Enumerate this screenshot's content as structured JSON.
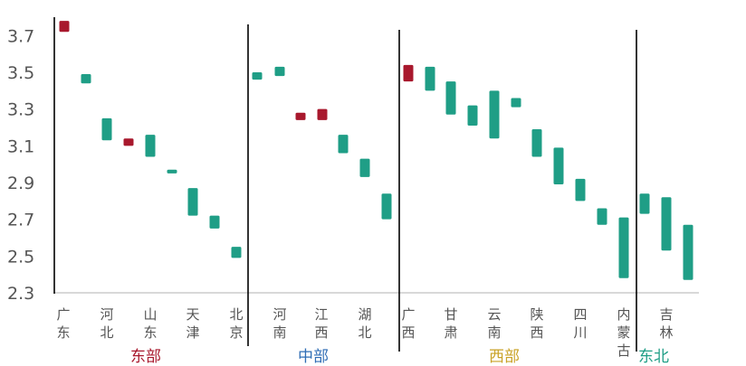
{
  "chart_data": {
    "type": "range-bar",
    "title": "",
    "xlabel": "",
    "ylabel": "",
    "ylim": [
      2.3,
      3.8
    ],
    "yticks": [
      "2.3",
      "2.5",
      "2.7",
      "2.9",
      "3.1",
      "3.3",
      "3.5",
      "3.7"
    ],
    "grid": false,
    "colors": {
      "up": "#1f9e86",
      "down": "#a8182d",
      "axis": "#cccccc",
      "divider": "#000000"
    },
    "categories": [
      "广东",
      "河北",
      "山东",
      "天津",
      "北京",
      "河南",
      "江西",
      "湖北",
      "广西",
      "甘肃",
      "云南",
      "陕西",
      "四川",
      "内蒙古",
      "吉林"
    ],
    "category_chars": [
      [
        "广",
        "东"
      ],
      [
        "河",
        "北"
      ],
      [
        "山",
        "东"
      ],
      [
        "天",
        "津"
      ],
      [
        "北",
        "京"
      ],
      [
        "河",
        "南"
      ],
      [
        "江",
        "西"
      ],
      [
        "湖",
        "北"
      ],
      [
        "广",
        "西"
      ],
      [
        "甘",
        "肃"
      ],
      [
        "云",
        "南"
      ],
      [
        "陕",
        "西"
      ],
      [
        "四",
        "川"
      ],
      [
        "内",
        "蒙",
        "古"
      ],
      [
        "吉",
        "林"
      ]
    ],
    "bars": [
      {
        "low": 3.72,
        "high": 3.78,
        "color": "down"
      },
      {
        "low": 3.44,
        "high": 3.49,
        "color": "up"
      },
      {
        "low": 3.13,
        "high": 3.25,
        "color": "up"
      },
      {
        "low": 3.1,
        "high": 3.14,
        "color": "down"
      },
      {
        "low": 3.04,
        "high": 3.16,
        "color": "up"
      },
      {
        "low": 2.95,
        "high": 2.97,
        "color": "up"
      },
      {
        "low": 2.72,
        "high": 2.87,
        "color": "up"
      },
      {
        "low": 2.65,
        "high": 2.72,
        "color": "up"
      },
      {
        "low": 2.49,
        "high": 2.55,
        "color": "up"
      },
      {
        "low": 3.46,
        "high": 3.5,
        "color": "up"
      },
      {
        "low": 3.48,
        "high": 3.53,
        "color": "up"
      },
      {
        "low": 3.24,
        "high": 3.28,
        "color": "down"
      },
      {
        "low": 3.24,
        "high": 3.3,
        "color": "down"
      },
      {
        "low": 3.06,
        "high": 3.16,
        "color": "up"
      },
      {
        "low": 2.93,
        "high": 3.03,
        "color": "up"
      },
      {
        "low": 2.7,
        "high": 2.84,
        "color": "up"
      },
      {
        "low": 3.45,
        "high": 3.54,
        "color": "down"
      },
      {
        "low": 3.4,
        "high": 3.53,
        "color": "up"
      },
      {
        "low": 3.27,
        "high": 3.45,
        "color": "up"
      },
      {
        "low": 3.21,
        "high": 3.32,
        "color": "up"
      },
      {
        "low": 3.14,
        "high": 3.4,
        "color": "up"
      },
      {
        "low": 3.31,
        "high": 3.36,
        "color": "up"
      },
      {
        "low": 3.04,
        "high": 3.19,
        "color": "up"
      },
      {
        "low": 2.89,
        "high": 3.09,
        "color": "up"
      },
      {
        "low": 2.8,
        "high": 2.92,
        "color": "up"
      },
      {
        "low": 2.67,
        "high": 2.76,
        "color": "up"
      },
      {
        "low": 2.38,
        "high": 2.71,
        "color": "up"
      },
      {
        "low": 2.73,
        "high": 2.84,
        "color": "up"
      },
      {
        "low": 2.53,
        "high": 2.82,
        "color": "up"
      },
      {
        "low": 2.37,
        "high": 2.67,
        "color": "up"
      }
    ],
    "regions": [
      {
        "name": "东部",
        "color": "#a8182d"
      },
      {
        "name": "中部",
        "color": "#2f6db5"
      },
      {
        "name": "西部",
        "color": "#c9a227"
      },
      {
        "name": "东北",
        "color": "#1f9e86"
      }
    ]
  }
}
